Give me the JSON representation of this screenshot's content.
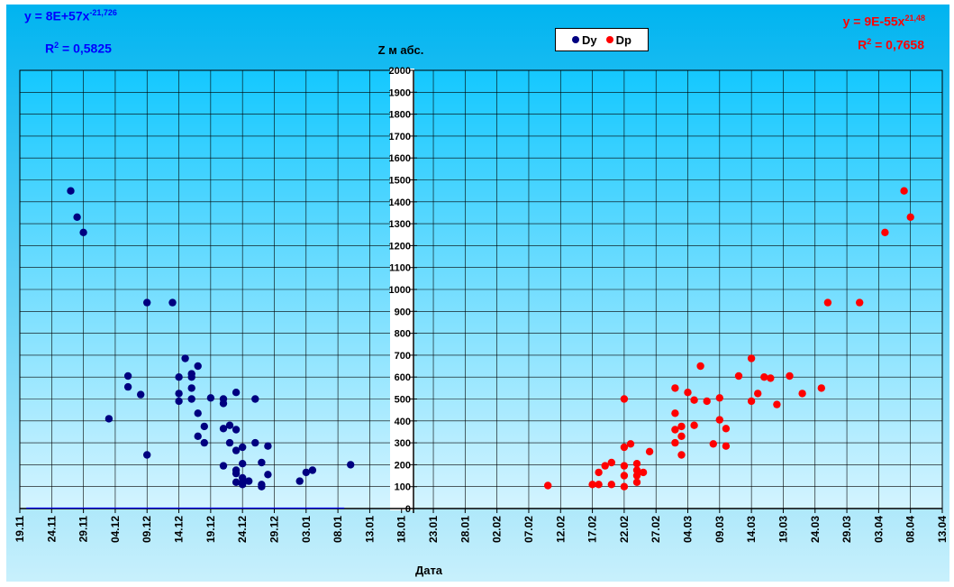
{
  "chart_data": {
    "type": "scatter",
    "title": "Z м абс.",
    "xlabel": "Дата",
    "ylabel": "",
    "x_tick_labels": [
      "19.11",
      "24.11",
      "29.11",
      "04.12",
      "09.12",
      "14.12",
      "19.12",
      "24.12",
      "29.12",
      "03.01",
      "08.01",
      "13.01",
      "18.01",
      "23.01",
      "28.01",
      "02.02",
      "07.02",
      "12.02",
      "17.02",
      "22.02",
      "27.02",
      "04.03",
      "09.03",
      "14.03",
      "19.03",
      "24.03",
      "29.03",
      "03.04",
      "08.04",
      "13.04"
    ],
    "xlim": [
      "19.11",
      "13.04"
    ],
    "ylim": [
      0,
      2000
    ],
    "y_ticks": [
      0,
      100,
      200,
      300,
      400,
      500,
      600,
      700,
      800,
      900,
      1000,
      1100,
      1200,
      1300,
      1400,
      1500,
      1600,
      1700,
      1800,
      1900,
      2000
    ],
    "grid": true,
    "legend_position": "top-center",
    "series": [
      {
        "name": "Dy",
        "color": "#000080",
        "points": [
          [
            "27.11",
            1450
          ],
          [
            "28.11",
            1330
          ],
          [
            "29.11",
            1260
          ],
          [
            "03.12",
            410
          ],
          [
            "09.12",
            940
          ],
          [
            "13.12",
            940
          ],
          [
            "06.12",
            605
          ],
          [
            "06.12",
            555
          ],
          [
            "08.12",
            520
          ],
          [
            "09.12",
            245
          ],
          [
            "14.12",
            600
          ],
          [
            "14.12",
            525
          ],
          [
            "14.12",
            490
          ],
          [
            "15.12",
            685
          ],
          [
            "16.12",
            615
          ],
          [
            "16.12",
            600
          ],
          [
            "16.12",
            550
          ],
          [
            "16.12",
            500
          ],
          [
            "17.12",
            650
          ],
          [
            "17.12",
            435
          ],
          [
            "17.12",
            330
          ],
          [
            "18.12",
            375
          ],
          [
            "18.12",
            300
          ],
          [
            "19.12",
            505
          ],
          [
            "21.12",
            500
          ],
          [
            "21.12",
            480
          ],
          [
            "21.12",
            365
          ],
          [
            "21.12",
            195
          ],
          [
            "22.12",
            380
          ],
          [
            "22.12",
            300
          ],
          [
            "23.12",
            530
          ],
          [
            "23.12",
            360
          ],
          [
            "23.12",
            265
          ],
          [
            "23.12",
            175
          ],
          [
            "23.12",
            160
          ],
          [
            "23.12",
            120
          ],
          [
            "24.12",
            280
          ],
          [
            "24.12",
            205
          ],
          [
            "24.12",
            140
          ],
          [
            "24.12",
            120
          ],
          [
            "24.12",
            110
          ],
          [
            "25.12",
            125
          ],
          [
            "26.12",
            500
          ],
          [
            "26.12",
            300
          ],
          [
            "27.12",
            210
          ],
          [
            "27.12",
            110
          ],
          [
            "27.12",
            100
          ],
          [
            "28.12",
            285
          ],
          [
            "28.12",
            155
          ],
          [
            "02.01",
            125
          ],
          [
            "03.01",
            165
          ],
          [
            "04.01",
            175
          ],
          [
            "10.01",
            200
          ]
        ],
        "trendline": {
          "equation": "y = 8E+57x-21,726",
          "label_main": "y = 8E+57x",
          "label_exp": "-21,726",
          "r2_label": "R2 = 0,5825",
          "coef": 8e+57,
          "exp": -21.726,
          "x_range": [
            "20.11",
            "09.01"
          ]
        }
      },
      {
        "name": "Dp",
        "color": "#ff0000",
        "points": [
          [
            "10.02",
            105
          ],
          [
            "22.02",
            500
          ],
          [
            "17.02",
            110
          ],
          [
            "18.02",
            165
          ],
          [
            "18.02",
            110
          ],
          [
            "19.02",
            195
          ],
          [
            "20.02",
            210
          ],
          [
            "20.02",
            110
          ],
          [
            "22.02",
            280
          ],
          [
            "22.02",
            195
          ],
          [
            "22.02",
            150
          ],
          [
            "22.02",
            100
          ],
          [
            "23.02",
            295
          ],
          [
            "24.02",
            205
          ],
          [
            "24.02",
            175
          ],
          [
            "24.02",
            150
          ],
          [
            "24.02",
            120
          ],
          [
            "25.02",
            165
          ],
          [
            "26.02",
            260
          ],
          [
            "02.03",
            550
          ],
          [
            "02.03",
            435
          ],
          [
            "02.03",
            360
          ],
          [
            "02.03",
            300
          ],
          [
            "03.03",
            375
          ],
          [
            "03.03",
            330
          ],
          [
            "03.03",
            245
          ],
          [
            "04.03",
            530
          ],
          [
            "05.03",
            495
          ],
          [
            "05.03",
            380
          ],
          [
            "06.03",
            650
          ],
          [
            "07.03",
            490
          ],
          [
            "08.03",
            295
          ],
          [
            "09.03",
            505
          ],
          [
            "09.03",
            405
          ],
          [
            "10.03",
            365
          ],
          [
            "10.03",
            285
          ],
          [
            "12.03",
            605
          ],
          [
            "14.03",
            685
          ],
          [
            "14.03",
            490
          ],
          [
            "15.03",
            525
          ],
          [
            "16.03",
            600
          ],
          [
            "17.03",
            595
          ],
          [
            "18.03",
            475
          ],
          [
            "20.03",
            605
          ],
          [
            "22.03",
            525
          ],
          [
            "25.03",
            550
          ],
          [
            "26.03",
            940
          ],
          [
            "31.03",
            940
          ],
          [
            "04.04",
            1260
          ],
          [
            "07.04",
            1450
          ],
          [
            "08.04",
            1330
          ]
        ],
        "trendline": {
          "equation": "y = 9E-55x21,48",
          "label_main": "y = 9E-55x",
          "label_exp": "21,48",
          "r2_label": "R2 = 0,7658",
          "coef": 9e-55,
          "exp": 21.48,
          "x_range": [
            "10.02",
            "13.04"
          ]
        }
      }
    ]
  },
  "annotations": {
    "left": {
      "eq_main": "y = 8E+57x",
      "eq_exp": "-21,726",
      "r2_main": "R",
      "r2_sup": "2",
      "r2_rest": " = 0,5825",
      "color": "#0000ff"
    },
    "right": {
      "eq_main": "y = 9E-55x",
      "eq_exp": "21,48",
      "r2_main": "R",
      "r2_sup": "2",
      "r2_rest": " = 0,7658",
      "color": "#ff0000"
    }
  },
  "colors": {
    "background_top": "#00b4f0",
    "background_bottom": "#c8f0fc",
    "plot_top": "#14c8ff",
    "plot_bottom": "#d4f4ff",
    "grid": "#000000"
  }
}
